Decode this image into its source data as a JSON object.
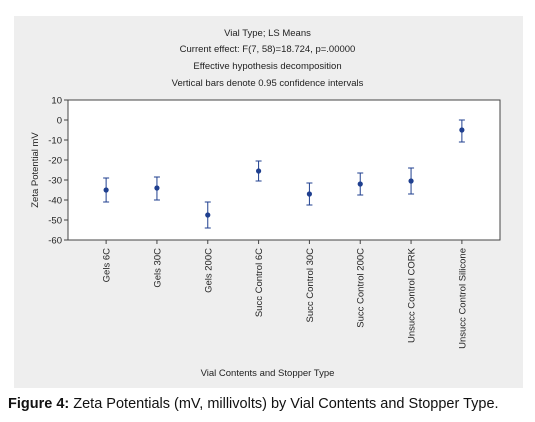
{
  "caption": {
    "label": "Figure 4:",
    "text": " Zeta Potentials (mV, millivolts) by Vial Contents and Stopper Type."
  },
  "chart_data": {
    "type": "scatter",
    "title_lines": [
      "Vial Type; LS Means",
      "Current effect: F(7, 58)=18.724, p=.00000",
      "Effective hypothesis decomposition",
      "Vertical bars denote 0.95 confidence intervals"
    ],
    "xlabel": "Vial Contents and Stopper Type",
    "ylabel": "Zeta Potential mV",
    "ylim": [
      -60,
      10
    ],
    "yticks": [
      10,
      0,
      -10,
      -20,
      -30,
      -40,
      -50,
      -60
    ],
    "grid": false,
    "marker_color": "#1f3f8f",
    "categories": [
      "Gels 6C",
      "Gels 30C",
      "Gels 200C",
      "Succ Control 6C",
      "Succ Control 30C",
      "Succ Control 200C",
      "Unsucc Control CORK",
      "Unsucc Control Silicone"
    ],
    "means": [
      -35,
      -34,
      -47.5,
      -25.5,
      -37,
      -32,
      -30.5,
      -5
    ],
    "ci_low": [
      -41,
      -40,
      -54,
      -30.5,
      -42.5,
      -37.5,
      -37,
      -11
    ],
    "ci_high": [
      -29,
      -28.5,
      -41,
      -20.5,
      -31.5,
      -26.5,
      -24,
      0
    ]
  }
}
